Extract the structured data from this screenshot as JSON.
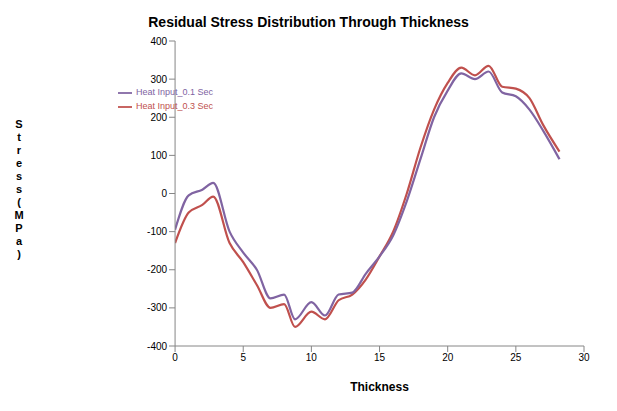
{
  "chart_data": {
    "type": "line",
    "title": "Residual Stress Distribution Through Thickness",
    "x_label": "Thickness",
    "y_label": "Stress (MPa)",
    "x": [
      0,
      1,
      2,
      2.8,
      4,
      5,
      6,
      7,
      8,
      8.8,
      10,
      11,
      12,
      13,
      14,
      15,
      16,
      17,
      18,
      19,
      20,
      21,
      22,
      23,
      24,
      25,
      26,
      27,
      28.2
    ],
    "series": [
      {
        "name": "Heat Input_0.3 Sec",
        "color": "#c0504d",
        "values": [
          -130,
          -50,
          -30,
          -8,
          -130,
          -180,
          -240,
          -300,
          -290,
          -350,
          -310,
          -330,
          -280,
          -265,
          -225,
          -165,
          -100,
          0,
          120,
          220,
          290,
          330,
          310,
          335,
          280,
          275,
          250,
          180,
          110
        ]
      },
      {
        "name": "Heat Input_0.1 Sec",
        "color": "#8064a2",
        "values": [
          -95,
          -5,
          10,
          28,
          -100,
          -155,
          -200,
          -275,
          -265,
          -330,
          -285,
          -320,
          -265,
          -260,
          -210,
          -165,
          -110,
          -20,
          90,
          200,
          270,
          315,
          300,
          320,
          265,
          255,
          220,
          165,
          90
        ]
      }
    ],
    "xlim": [
      0,
      30
    ],
    "xticks": [
      0,
      5,
      10,
      15,
      20,
      25,
      30
    ],
    "ylim": [
      -400,
      400
    ],
    "yticks": [
      -400,
      -300,
      -200,
      -100,
      0,
      100,
      200,
      300,
      400
    ],
    "grid": false,
    "legend": "upper left"
  }
}
